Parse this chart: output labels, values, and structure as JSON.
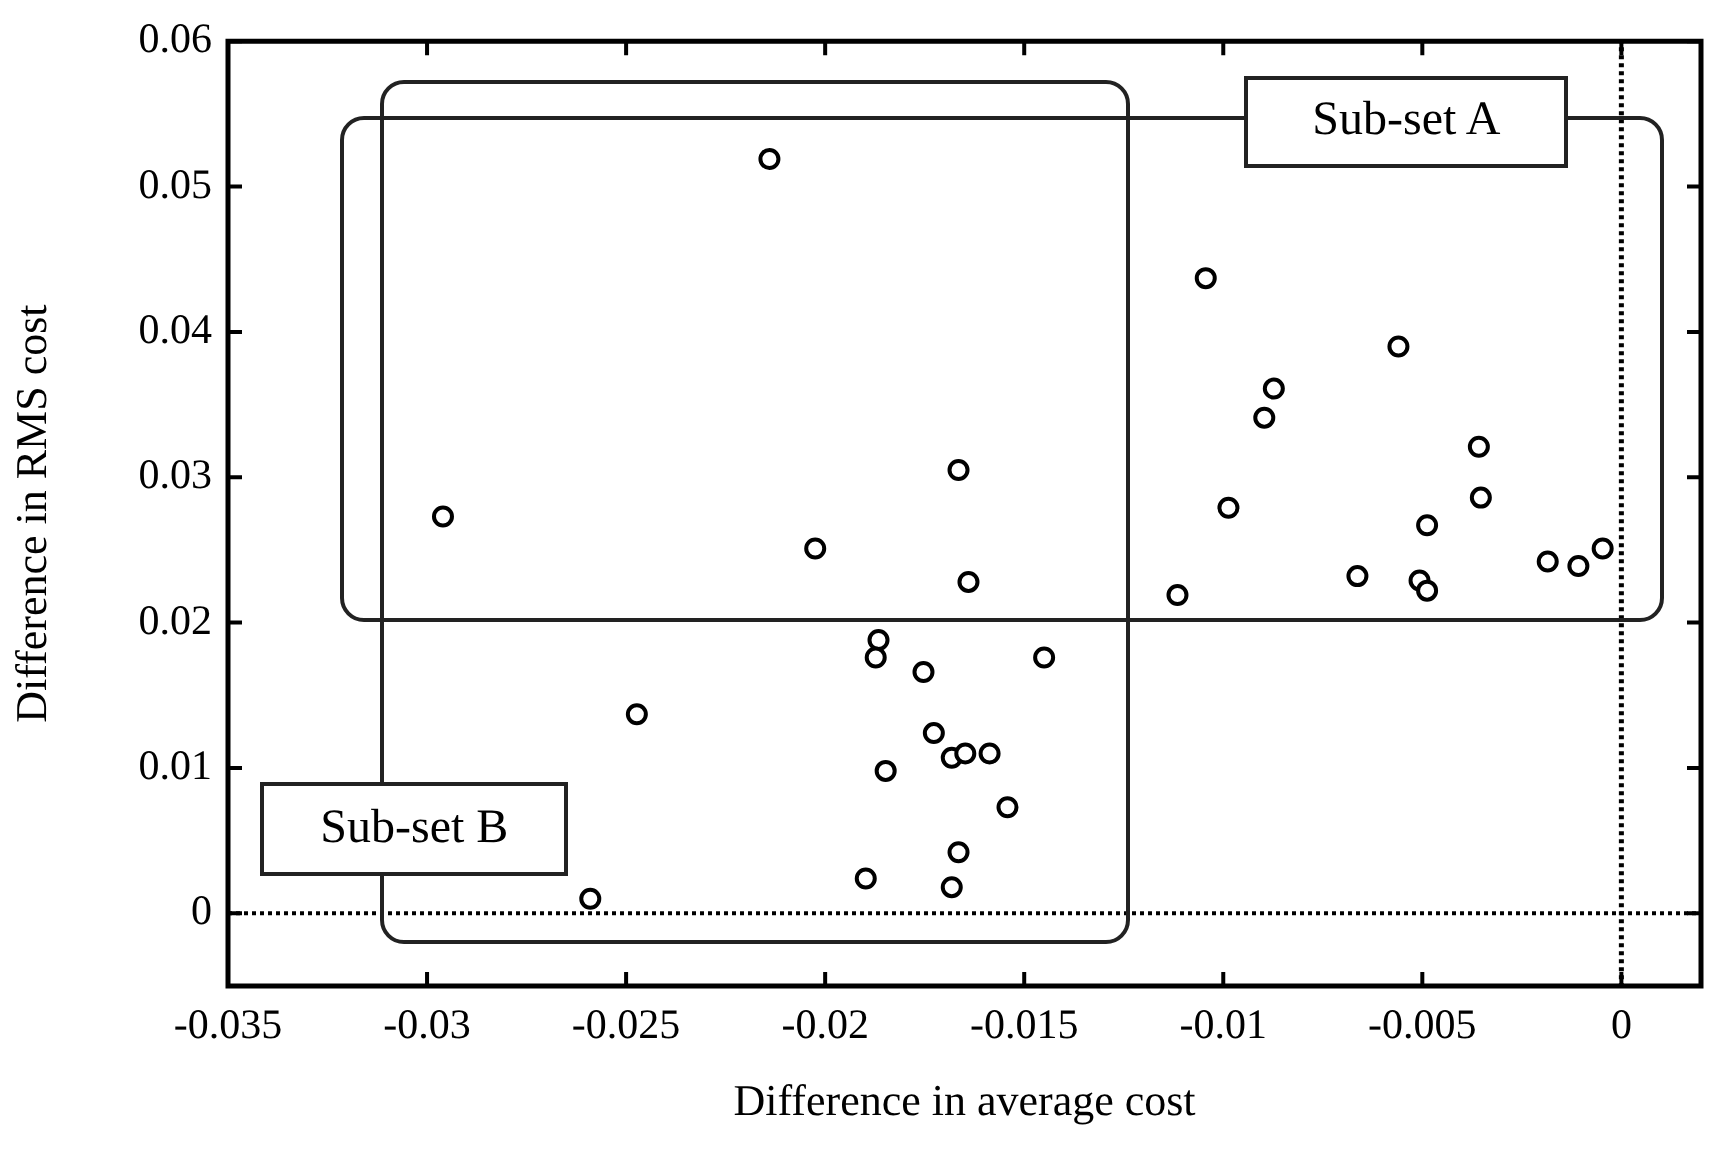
{
  "chart_data": {
    "type": "scatter",
    "xlabel": "Difference in average cost",
    "ylabel": "Difference in RMS cost",
    "xlim": [
      -0.035,
      0.002
    ],
    "xticks": [
      -0.035,
      -0.03,
      -0.025,
      -0.02,
      -0.015,
      -0.01,
      -0.005,
      0
    ],
    "ylim": [
      -0.005,
      0.06
    ],
    "yticks": [
      0,
      0.01,
      0.02,
      0.03,
      0.04,
      0.05,
      0.06
    ],
    "grid": false,
    "legend": false,
    "marker": "circle",
    "series": [
      {
        "color": "#000000",
        "x": [
          -0.0214,
          -0.0296,
          -0.02025,
          -0.01665,
          -0.0164,
          -0.01866,
          -0.01873,
          -0.01753,
          -0.02473,
          -0.01727,
          -0.01682,
          -0.01648,
          -0.01587,
          -0.01848,
          -0.01542,
          -0.01665,
          -0.01898,
          -0.01682,
          -0.0259,
          -0.0145,
          -0.01044,
          -0.0056,
          -0.00873,
          -0.00897,
          -0.00358,
          -0.00353,
          -0.00987,
          -0.00488,
          -0.00047,
          -0.00185,
          -0.00108,
          -0.00663,
          -0.00507,
          -0.00488,
          -0.01115
        ],
        "values": [
          0.0519,
          0.0273,
          0.0251,
          0.0305,
          0.0228,
          0.0188,
          0.0176,
          0.0166,
          0.0137,
          0.0124,
          0.0107,
          0.011,
          0.011,
          0.0098,
          0.0073,
          0.0042,
          0.0024,
          0.0018,
          0.001,
          0.0176,
          0.0437,
          0.039,
          0.0361,
          0.0341,
          0.0321,
          0.0286,
          0.0279,
          0.0267,
          0.0251,
          0.0242,
          0.0239,
          0.0232,
          0.0229,
          0.0222,
          0.0219
        ]
      }
    ],
    "ref_lines": [
      {
        "axis": "y",
        "value": 0,
        "color": "#000000",
        "line_style": "dotted"
      },
      {
        "axis": "x",
        "value": 0,
        "color": "#000000",
        "line_style": "dotted"
      }
    ],
    "annotations": [
      "Sub-set A",
      "Sub-set B"
    ]
  }
}
